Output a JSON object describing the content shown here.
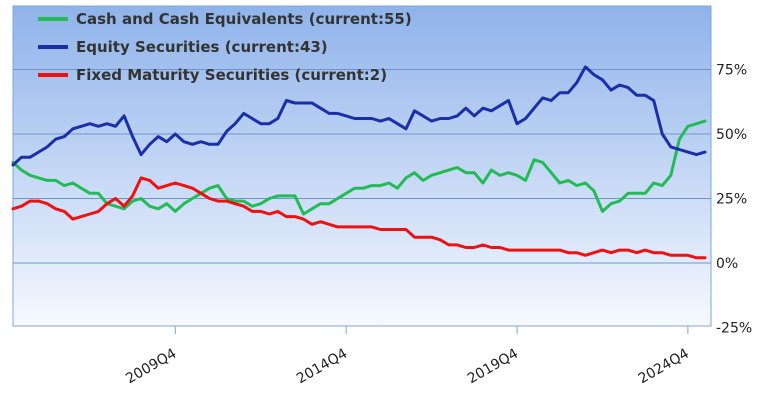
{
  "chart_data": {
    "type": "line",
    "title": "",
    "xlabel": "",
    "ylabel": "",
    "ylim": [
      -25,
      100
    ],
    "y_ticks": [
      "75%",
      "50%",
      "25%",
      "0%",
      "-25%"
    ],
    "y_tick_values": [
      75,
      50,
      25,
      0,
      -25
    ],
    "x_tick_labels": [
      "2009Q4",
      "2014Q4",
      "2019Q4",
      "2024Q4"
    ],
    "x_tick_positions": [
      2009.75,
      2014.75,
      2019.75,
      2024.75
    ],
    "x_range": [
      2005.0,
      2025.25
    ],
    "grid": true,
    "legend_position": "top-left",
    "series": [
      {
        "name": "Cash and Cash Equivalents (current:55)",
        "color": "#22bb55",
        "x": [
          2005.0,
          2005.25,
          2005.5,
          2005.75,
          2006.0,
          2006.25,
          2006.5,
          2006.75,
          2007.0,
          2007.25,
          2007.5,
          2007.75,
          2008.0,
          2008.25,
          2008.5,
          2008.75,
          2009.0,
          2009.25,
          2009.5,
          2009.75,
          2010.0,
          2010.25,
          2010.5,
          2010.75,
          2011.0,
          2011.25,
          2011.5,
          2011.75,
          2012.0,
          2012.25,
          2012.5,
          2012.75,
          2013.0,
          2013.25,
          2013.5,
          2013.75,
          2014.0,
          2014.25,
          2014.5,
          2014.75,
          2015.0,
          2015.25,
          2015.5,
          2015.75,
          2016.0,
          2016.25,
          2016.5,
          2016.75,
          2017.0,
          2017.25,
          2017.5,
          2017.75,
          2018.0,
          2018.25,
          2018.5,
          2018.75,
          2019.0,
          2019.25,
          2019.5,
          2019.75,
          2020.0,
          2020.25,
          2020.5,
          2020.75,
          2021.0,
          2021.25,
          2021.5,
          2021.75,
          2022.0,
          2022.25,
          2022.5,
          2022.75,
          2023.0,
          2023.25,
          2023.5,
          2023.75,
          2024.0,
          2024.25,
          2024.5,
          2024.75,
          2025.0,
          2025.25
        ],
        "values": [
          39,
          36,
          34,
          33,
          32,
          32,
          30,
          31,
          29,
          27,
          27,
          23,
          22,
          21,
          24,
          25,
          22,
          21,
          23,
          20,
          23,
          25,
          27,
          29,
          30,
          25,
          24,
          24,
          22,
          23,
          25,
          26,
          26,
          26,
          19,
          21,
          23,
          23,
          25,
          27,
          29,
          29,
          30,
          30,
          31,
          29,
          33,
          35,
          32,
          34,
          35,
          36,
          37,
          35,
          35,
          31,
          36,
          34,
          35,
          34,
          32,
          40,
          39,
          35,
          31,
          32,
          30,
          31,
          28,
          20,
          23,
          24,
          27,
          27,
          27,
          31,
          30,
          34,
          48,
          53,
          54,
          55
        ]
      },
      {
        "name": "Equity Securities (current:43)",
        "color": "#1a2fa8",
        "x": [
          2005.0,
          2005.25,
          2005.5,
          2005.75,
          2006.0,
          2006.25,
          2006.5,
          2006.75,
          2007.0,
          2007.25,
          2007.5,
          2007.75,
          2008.0,
          2008.25,
          2008.5,
          2008.75,
          2009.0,
          2009.25,
          2009.5,
          2009.75,
          2010.0,
          2010.25,
          2010.5,
          2010.75,
          2011.0,
          2011.25,
          2011.5,
          2011.75,
          2012.0,
          2012.25,
          2012.5,
          2012.75,
          2013.0,
          2013.25,
          2013.5,
          2013.75,
          2014.0,
          2014.25,
          2014.5,
          2014.75,
          2015.0,
          2015.25,
          2015.5,
          2015.75,
          2016.0,
          2016.25,
          2016.5,
          2016.75,
          2017.0,
          2017.25,
          2017.5,
          2017.75,
          2018.0,
          2018.25,
          2018.5,
          2018.75,
          2019.0,
          2019.25,
          2019.5,
          2019.75,
          2020.0,
          2020.25,
          2020.5,
          2020.75,
          2021.0,
          2021.25,
          2021.5,
          2021.75,
          2022.0,
          2022.25,
          2022.5,
          2022.75,
          2023.0,
          2023.25,
          2023.5,
          2023.75,
          2024.0,
          2024.25,
          2024.5,
          2024.75,
          2025.0,
          2025.25
        ],
        "values": [
          38,
          41,
          41,
          43,
          45,
          48,
          49,
          52,
          53,
          54,
          53,
          54,
          53,
          57,
          49,
          42,
          46,
          49,
          47,
          50,
          47,
          46,
          47,
          46,
          46,
          51,
          54,
          58,
          56,
          54,
          54,
          56,
          63,
          62,
          62,
          62,
          60,
          58,
          58,
          57,
          56,
          56,
          56,
          55,
          56,
          54,
          52,
          59,
          57,
          55,
          56,
          56,
          57,
          60,
          57,
          60,
          59,
          61,
          63,
          54,
          56,
          60,
          64,
          63,
          66,
          66,
          70,
          76,
          73,
          71,
          67,
          69,
          68,
          65,
          65,
          63,
          50,
          45,
          44,
          43,
          42,
          43
        ]
      },
      {
        "name": "Fixed Maturity Securities (current:2)",
        "color": "#ee1111",
        "x": [
          2005.0,
          2005.25,
          2005.5,
          2005.75,
          2006.0,
          2006.25,
          2006.5,
          2006.75,
          2007.0,
          2007.25,
          2007.5,
          2007.75,
          2008.0,
          2008.25,
          2008.5,
          2008.75,
          2009.0,
          2009.25,
          2009.5,
          2009.75,
          2010.0,
          2010.25,
          2010.5,
          2010.75,
          2011.0,
          2011.25,
          2011.5,
          2011.75,
          2012.0,
          2012.25,
          2012.5,
          2012.75,
          2013.0,
          2013.25,
          2013.5,
          2013.75,
          2014.0,
          2014.25,
          2014.5,
          2014.75,
          2015.0,
          2015.25,
          2015.5,
          2015.75,
          2016.0,
          2016.25,
          2016.5,
          2016.75,
          2017.0,
          2017.25,
          2017.5,
          2017.75,
          2018.0,
          2018.25,
          2018.5,
          2018.75,
          2019.0,
          2019.25,
          2019.5,
          2019.75,
          2020.0,
          2020.25,
          2020.5,
          2020.75,
          2021.0,
          2021.25,
          2021.5,
          2021.75,
          2022.0,
          2022.25,
          2022.5,
          2022.75,
          2023.0,
          2023.25,
          2023.5,
          2023.75,
          2024.0,
          2024.25,
          2024.5,
          2024.75,
          2025.0,
          2025.25
        ],
        "values": [
          21,
          22,
          24,
          24,
          23,
          21,
          20,
          17,
          18,
          19,
          20,
          23,
          25,
          22,
          26,
          33,
          32,
          29,
          30,
          31,
          30,
          29,
          27,
          25,
          24,
          24,
          23,
          22,
          20,
          20,
          19,
          20,
          18,
          18,
          17,
          15,
          16,
          15,
          14,
          14,
          14,
          14,
          14,
          13,
          13,
          13,
          13,
          10,
          10,
          10,
          9,
          7,
          7,
          6,
          6,
          7,
          6,
          6,
          5,
          5,
          5,
          5,
          5,
          5,
          5,
          4,
          4,
          3,
          4,
          5,
          4,
          5,
          5,
          4,
          5,
          4,
          4,
          3,
          3,
          3,
          2,
          2
        ]
      }
    ]
  }
}
